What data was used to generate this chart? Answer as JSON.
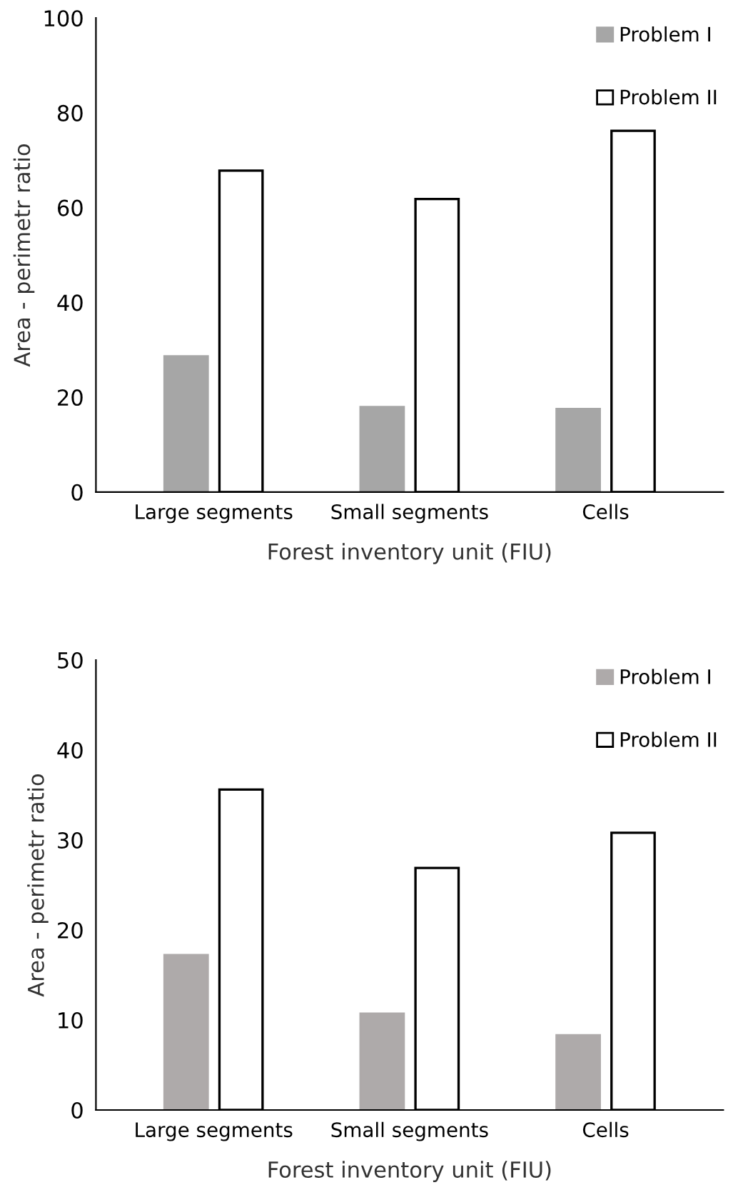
{
  "chart_data": [
    {
      "type": "bar",
      "categories": [
        "Large segments",
        "Small segments",
        "Cells"
      ],
      "xlabel": "Forest inventory unit (FIU)",
      "ylabel": "Area - perimetr ratio",
      "ylim": [
        0,
        100
      ],
      "yticks": [
        0,
        20,
        40,
        60,
        80,
        100
      ],
      "grid": false,
      "legend": "top right",
      "series": [
        {
          "name": "Problem I",
          "color": "#a6a6a6",
          "values": [
            28.6,
            17.9,
            17.5
          ]
        },
        {
          "name": "Problem II",
          "color": "#ffffff",
          "values": [
            67.8,
            61.8,
            76.2
          ]
        }
      ]
    },
    {
      "type": "bar",
      "categories": [
        "Large segments",
        "Small segments",
        "Cells"
      ],
      "xlabel": "Forest inventory unit (FIU)",
      "ylabel": "Area - perimetr ratio",
      "ylim": [
        0,
        50
      ],
      "yticks": [
        0,
        10,
        20,
        30,
        40,
        50
      ],
      "grid": false,
      "legend": "top right",
      "series": [
        {
          "name": "Problem I",
          "color": "#aeaaaa",
          "values": [
            17.2,
            10.7,
            8.3
          ]
        },
        {
          "name": "Problem II",
          "color": "#ffffff",
          "values": [
            35.6,
            26.9,
            30.8
          ]
        }
      ]
    }
  ]
}
